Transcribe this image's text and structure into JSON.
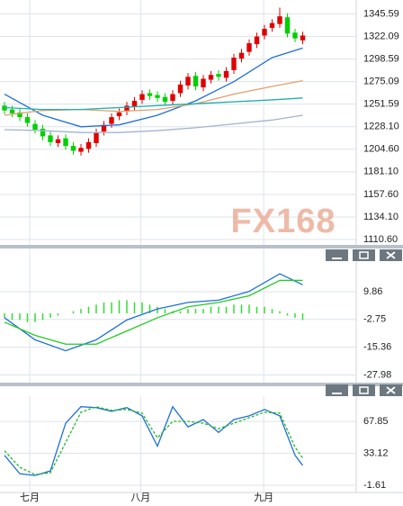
{
  "watermark": "FX168",
  "chart_data": [
    {
      "type": "candlestick",
      "ylim": [
        1105,
        1360
      ],
      "yticks": [
        1345.59,
        1322.09,
        1298.59,
        1275.09,
        1251.59,
        {
          "value": 1228.1,
          "label": "1228.10"
        },
        {
          "value": 1204.6,
          "label": "1204.60"
        },
        {
          "value": 1181.1,
          "label": "1181.10"
        },
        {
          "value": 1157.6,
          "label": "1157.60"
        },
        {
          "value": 1134.1,
          "label": "1134.10"
        },
        {
          "value": 1110.6,
          "label": "1110.60"
        }
      ],
      "up_color": "#e00000",
      "down_color": "#00d000",
      "open": [
        1250,
        1246,
        1243,
        1238,
        1231,
        1226,
        1219,
        1211,
        1216,
        1208,
        1202,
        1205,
        1211,
        1223,
        1231,
        1239,
        1244,
        1249,
        1256,
        1263,
        1261,
        1259,
        1255,
        1263,
        1271,
        1281,
        1269,
        1277,
        1283,
        1279,
        1287,
        1299,
        1306,
        1314,
        1323,
        1331,
        1335,
        1342,
        1326,
        1318
      ],
      "high": [
        1254,
        1250,
        1247,
        1242,
        1235,
        1230,
        1223,
        1219,
        1220,
        1212,
        1210,
        1216,
        1226,
        1234,
        1242,
        1247,
        1254,
        1259,
        1266,
        1267,
        1265,
        1263,
        1266,
        1276,
        1284,
        1285,
        1282,
        1286,
        1287,
        1290,
        1304,
        1309,
        1319,
        1326,
        1334,
        1340,
        1352,
        1346,
        1330,
        1327
      ],
      "low": [
        1241,
        1238,
        1234,
        1228,
        1221,
        1214,
        1208,
        1207,
        1204,
        1199,
        1198,
        1201,
        1207,
        1219,
        1227,
        1235,
        1240,
        1245,
        1252,
        1256,
        1254,
        1250,
        1251,
        1259,
        1267,
        1266,
        1265,
        1273,
        1276,
        1275,
        1283,
        1295,
        1302,
        1310,
        1319,
        1327,
        1331,
        1321,
        1316,
        1314
      ],
      "close": [
        1245,
        1242,
        1238,
        1232,
        1225,
        1218,
        1212,
        1215,
        1208,
        1203,
        1206,
        1212,
        1222,
        1230,
        1238,
        1243,
        1250,
        1255,
        1262,
        1260,
        1258,
        1254,
        1262,
        1272,
        1280,
        1270,
        1278,
        1282,
        1280,
        1286,
        1300,
        1305,
        1315,
        1322,
        1330,
        1336,
        1343,
        1325,
        1320,
        1323
      ],
      "series": [
        {
          "color": "#1e6fd8",
          "x": [
            0,
            5,
            10,
            15,
            20,
            25,
            30,
            35,
            39
          ],
          "values": [
            1262,
            1240,
            1228,
            1230,
            1240,
            1255,
            1275,
            1300,
            1310
          ]
        },
        {
          "color": "#e0a070",
          "x": [
            0,
            5,
            10,
            15,
            20,
            25,
            30,
            35,
            39
          ],
          "values": [
            1240,
            1245,
            1246,
            1244,
            1246,
            1252,
            1262,
            1270,
            1276
          ]
        },
        {
          "color": "#20b0b0",
          "x": [
            0,
            5,
            10,
            15,
            20,
            25,
            30,
            35,
            39
          ],
          "values": [
            1248,
            1246,
            1246,
            1248,
            1250,
            1252,
            1254,
            1256,
            1258
          ]
        },
        {
          "color": "#a0b4d0",
          "x": [
            0,
            5,
            10,
            15,
            20,
            25,
            30,
            35,
            39
          ],
          "values": [
            1225,
            1224,
            1222,
            1222,
            1224,
            1227,
            1231,
            1235,
            1240
          ]
        }
      ]
    },
    {
      "type": "macd",
      "ylim": [
        -31.5,
        29.5
      ],
      "yticks": [
        9.86,
        -2.75,
        -15.36,
        -27.98
      ],
      "histogram": {
        "color": "#33dd33",
        "values": [
          -2,
          -3,
          -3,
          -4,
          -4,
          -3,
          -2,
          -1,
          0,
          1,
          2,
          3,
          4,
          5,
          5,
          6,
          6,
          5,
          5,
          4,
          3,
          2,
          1,
          1,
          2,
          2,
          2,
          3,
          3,
          3,
          4,
          4,
          4,
          3,
          3,
          2,
          1,
          -1,
          -2,
          -3
        ]
      },
      "series": [
        {
          "color": "#1e6fd8",
          "x": [
            0,
            4,
            8,
            12,
            16,
            20,
            24,
            28,
            32,
            36,
            39
          ],
          "values": [
            -2,
            -12,
            -17,
            -12,
            -3,
            2,
            5,
            6,
            10,
            18,
            13
          ]
        },
        {
          "color": "#22cc22",
          "x": [
            0,
            4,
            8,
            12,
            16,
            20,
            24,
            28,
            32,
            36,
            39
          ],
          "values": [
            -4,
            -10,
            -14,
            -14,
            -8,
            -2,
            3,
            5,
            8,
            15,
            15
          ]
        }
      ]
    },
    {
      "type": "stochastic",
      "ylim": [
        -9.5,
        95.5
      ],
      "yticks": [
        67.85,
        33.12,
        -1.61
      ],
      "xticks": [
        {
          "value": 3.3,
          "label": "七月"
        },
        {
          "value": 17.8,
          "label": "八月"
        },
        {
          "value": 33.9,
          "label": "九月"
        }
      ],
      "series": [
        {
          "color": "#1e6fd8",
          "x": [
            0,
            2,
            4,
            6,
            8,
            10,
            12,
            14,
            16,
            18,
            20,
            22,
            24,
            26,
            28,
            30,
            32,
            34,
            36,
            38,
            39
          ],
          "values": [
            31,
            11,
            9,
            14,
            66,
            84,
            83,
            79,
            83,
            74,
            41,
            84,
            62,
            70,
            56,
            70,
            74,
            81,
            74,
            31,
            20
          ]
        },
        {
          "color": "#22bb22",
          "dashed": true,
          "x": [
            0,
            2,
            4,
            6,
            8,
            10,
            12,
            14,
            16,
            18,
            20,
            22,
            24,
            26,
            28,
            30,
            32,
            34,
            36,
            38,
            39
          ],
          "values": [
            36,
            18,
            10,
            12,
            45,
            78,
            84,
            80,
            81,
            77,
            50,
            68,
            68,
            66,
            60,
            66,
            72,
            78,
            77,
            40,
            28
          ]
        }
      ]
    }
  ]
}
